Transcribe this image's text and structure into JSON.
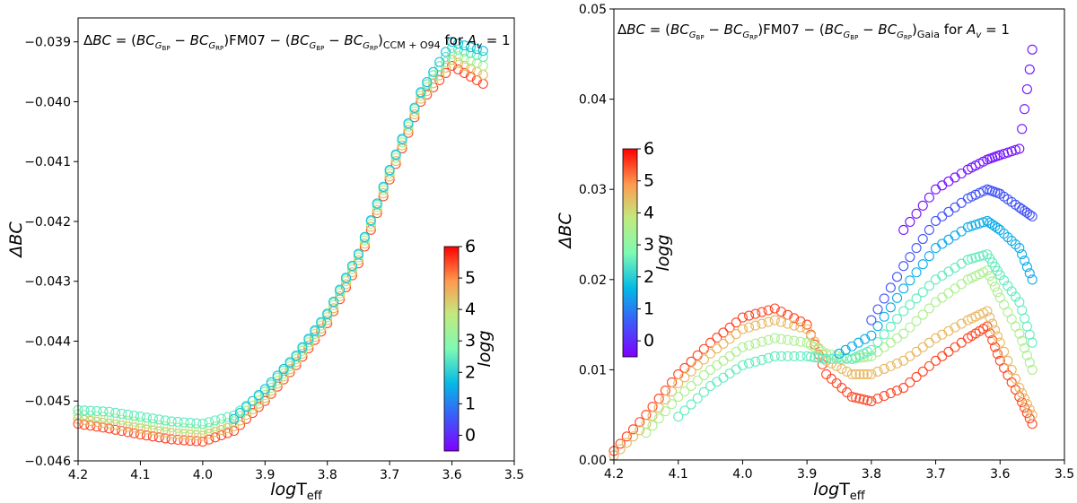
{
  "chart_data": [
    {
      "type": "scatter",
      "title_parts": {
        "delta": "Δ",
        "bc": "BC",
        "eq": " = (",
        "sub_bp": "G",
        "sub_bp2": "BP",
        "minus": " − ",
        "sub_rp": "G",
        "sub_rp2": "RP",
        "fm07": ")FM07",
        "second": "CCM + O94",
        "for": " for ",
        "av": "A",
        "av_sub": "v",
        "av_eq": " = 1"
      },
      "title": "ΔBC = (BC_GBP − BC_GRP)FM07 − (BC_GBP − BC_GRP)CCM + O94 for A_v = 1",
      "xlabel_main": "log",
      "xlabel_T": "T",
      "xlabel_sub": "eff",
      "ylabel": "ΔBC",
      "xlim": [
        4.2,
        3.5
      ],
      "ylim": [
        -0.046,
        -0.0386
      ],
      "xticks": [
        "4.2",
        "4.1",
        "4.0",
        "3.9",
        "3.8",
        "3.7",
        "3.6",
        "3.5"
      ],
      "yticks": [
        "−0.046",
        "−0.045",
        "−0.044",
        "−0.043",
        "−0.042",
        "−0.041",
        "−0.040",
        "−0.039"
      ],
      "ytick_values": [
        -0.046,
        -0.045,
        -0.044,
        -0.043,
        -0.042,
        -0.041,
        -0.04,
        -0.039
      ],
      "colorbar": {
        "label": "logg",
        "min": -0.5,
        "max": 6,
        "ticks": [
          "0",
          "1",
          "2",
          "3",
          "4",
          "5",
          "6"
        ]
      },
      "series": [
        {
          "logg": 5.5,
          "x": [
            4.2,
            4.15,
            4.1,
            4.05,
            4.0,
            3.95,
            3.9,
            3.85,
            3.8,
            3.75,
            3.7,
            3.65,
            3.6,
            3.55
          ],
          "y": [
            -0.04538,
            -0.04546,
            -0.04556,
            -0.04564,
            -0.04568,
            -0.0455,
            -0.045,
            -0.0444,
            -0.0437,
            -0.0427,
            -0.0413,
            -0.04,
            -0.0394,
            -0.0397
          ]
        },
        {
          "logg": 4.5,
          "x": [
            4.2,
            4.15,
            4.1,
            4.05,
            4.0,
            3.95,
            3.9,
            3.85,
            3.8,
            3.75,
            3.7,
            3.65,
            3.6,
            3.55
          ],
          "y": [
            -0.0453,
            -0.04538,
            -0.04546,
            -0.04554,
            -0.04558,
            -0.04542,
            -0.04495,
            -0.04435,
            -0.04365,
            -0.04265,
            -0.04125,
            -0.03995,
            -0.0393,
            -0.03955
          ]
        },
        {
          "logg": 3.5,
          "x": [
            4.2,
            4.15,
            4.1,
            4.05,
            4.0,
            3.95,
            3.9,
            3.85,
            3.8,
            3.75,
            3.7,
            3.65,
            3.6,
            3.55
          ],
          "y": [
            -0.04522,
            -0.04528,
            -0.04536,
            -0.04544,
            -0.04548,
            -0.04534,
            -0.0449,
            -0.0443,
            -0.0436,
            -0.0426,
            -0.0412,
            -0.0399,
            -0.0392,
            -0.0394
          ]
        },
        {
          "logg": 2.5,
          "x": [
            4.2,
            4.15,
            4.1,
            4.05,
            4.0,
            3.95,
            3.9,
            3.85,
            3.8,
            3.75,
            3.7,
            3.65,
            3.6,
            3.55
          ],
          "y": [
            -0.04515,
            -0.04518,
            -0.04526,
            -0.04534,
            -0.04538,
            -0.04524,
            -0.04484,
            -0.04426,
            -0.04356,
            -0.04256,
            -0.04116,
            -0.03986,
            -0.0391,
            -0.03925
          ]
        },
        {
          "logg": 1.8,
          "x": [
            3.95,
            3.9,
            3.85,
            3.8,
            3.75,
            3.7,
            3.65,
            3.6,
            3.55
          ],
          "y": [
            -0.0453,
            -0.0448,
            -0.04424,
            -0.04354,
            -0.04254,
            -0.04114,
            -0.03984,
            -0.039,
            -0.03915
          ]
        }
      ]
    },
    {
      "type": "scatter",
      "title_parts": {
        "delta": "Δ",
        "bc": "BC",
        "eq": " = (",
        "sub_bp": "G",
        "sub_bp2": "BP",
        "minus": " − ",
        "sub_rp": "G",
        "sub_rp2": "RP",
        "fm07": ")FM07",
        "second": "Gaia",
        "for": " for ",
        "av": "A",
        "av_sub": "v",
        "av_eq": " = 1"
      },
      "title": "ΔBC = (BC_GBP − BC_GRP)FM07 − (BC_GBP − BC_GRP)Gaia for A_v = 1",
      "xlabel_main": "log",
      "xlabel_T": "T",
      "xlabel_sub": "eff",
      "ylabel": "ΔBC",
      "xlim": [
        4.2,
        3.5
      ],
      "ylim": [
        0.0,
        0.05
      ],
      "xticks": [
        "4.2",
        "4.1",
        "4.0",
        "3.9",
        "3.8",
        "3.7",
        "3.6",
        "3.5"
      ],
      "yticks": [
        "0.00",
        "0.01",
        "0.02",
        "0.03",
        "0.04",
        "0.05"
      ],
      "ytick_values": [
        0.0,
        0.01,
        0.02,
        0.03,
        0.04,
        0.05
      ],
      "colorbar": {
        "label": "logg",
        "min": -0.5,
        "max": 6,
        "ticks": [
          "0",
          "1",
          "2",
          "3",
          "4",
          "5",
          "6"
        ]
      },
      "series": [
        {
          "logg": 5.5,
          "x": [
            4.2,
            4.15,
            4.1,
            4.05,
            4.0,
            3.95,
            3.9,
            3.87,
            3.83,
            3.8,
            3.75,
            3.7,
            3.65,
            3.62,
            3.6,
            3.57,
            3.55
          ],
          "y": [
            0.001,
            0.005,
            0.0095,
            0.013,
            0.0158,
            0.0168,
            0.015,
            0.0095,
            0.007,
            0.0065,
            0.008,
            0.011,
            0.0135,
            0.0148,
            0.011,
            0.007,
            0.004
          ]
        },
        {
          "logg": 4.5,
          "x": [
            4.2,
            4.15,
            4.1,
            4.05,
            4.0,
            3.95,
            3.9,
            3.87,
            3.83,
            3.8,
            3.75,
            3.7,
            3.65,
            3.62,
            3.6,
            3.57,
            3.55
          ],
          "y": [
            0.0005,
            0.004,
            0.0085,
            0.0118,
            0.0145,
            0.0155,
            0.0145,
            0.011,
            0.0095,
            0.0095,
            0.011,
            0.0135,
            0.0155,
            0.0165,
            0.013,
            0.008,
            0.005
          ]
        },
        {
          "logg": 3.5,
          "x": [
            4.15,
            4.1,
            4.05,
            4.0,
            3.95,
            3.9,
            3.87,
            3.83,
            3.8,
            3.75,
            3.7,
            3.65,
            3.62,
            3.6,
            3.57,
            3.55
          ],
          "y": [
            0.003,
            0.007,
            0.01,
            0.0125,
            0.0135,
            0.013,
            0.0118,
            0.0112,
            0.0115,
            0.014,
            0.0175,
            0.02,
            0.021,
            0.018,
            0.014,
            0.01
          ]
        },
        {
          "logg": 2.5,
          "x": [
            4.1,
            4.05,
            4.0,
            3.95,
            3.9,
            3.87,
            3.83,
            3.8,
            3.75,
            3.7,
            3.65,
            3.62,
            3.6,
            3.57,
            3.55
          ],
          "y": [
            0.0048,
            0.0082,
            0.0105,
            0.0115,
            0.0115,
            0.0112,
            0.0112,
            0.0122,
            0.0165,
            0.02,
            0.0222,
            0.0228,
            0.0205,
            0.0175,
            0.013
          ]
        },
        {
          "logg": 1.5,
          "x": [
            3.85,
            3.8,
            3.75,
            3.7,
            3.65,
            3.62,
            3.6,
            3.57,
            3.55
          ],
          "y": [
            0.0118,
            0.0138,
            0.019,
            0.0235,
            0.0258,
            0.0265,
            0.0255,
            0.0235,
            0.02
          ]
        },
        {
          "logg": 0.5,
          "x": [
            3.8,
            3.75,
            3.7,
            3.65,
            3.62,
            3.6,
            3.57,
            3.55
          ],
          "y": [
            0.0155,
            0.0215,
            0.0265,
            0.029,
            0.03,
            0.0295,
            0.028,
            0.027
          ]
        },
        {
          "logg": -0.3,
          "x": [
            3.75,
            3.7,
            3.65,
            3.62,
            3.6,
            3.57,
            3.55
          ],
          "y": [
            0.0255,
            0.03,
            0.0322,
            0.0333,
            0.0338,
            0.0345,
            0.0455
          ]
        }
      ]
    }
  ]
}
